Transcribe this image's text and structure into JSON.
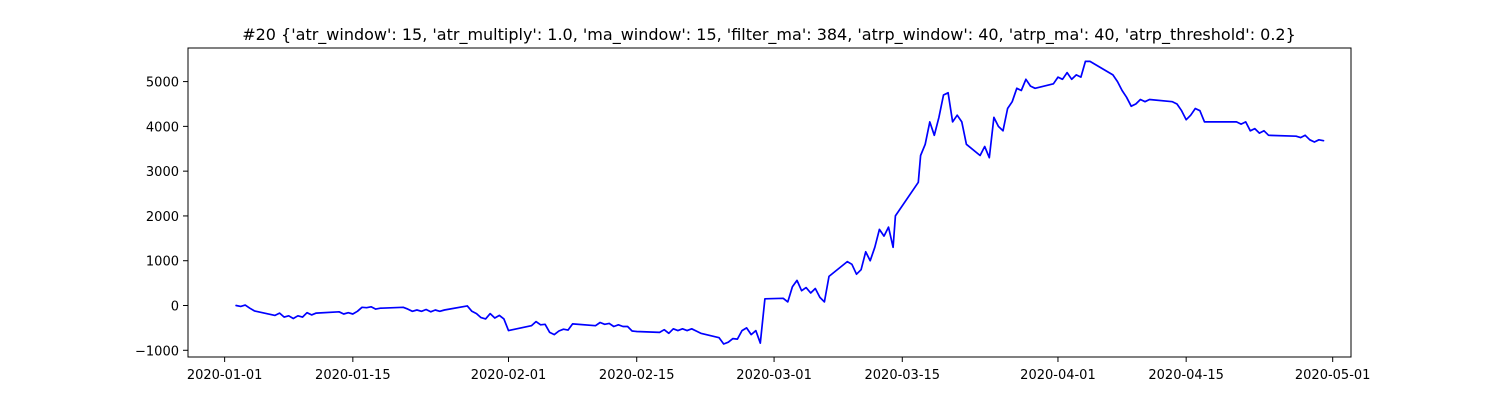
{
  "chart_data": {
    "type": "line",
    "title": "#20 {'atr_window': 15, 'atr_multiply': 1.0, 'ma_window': 15, 'filter_ma': 384, 'atrp_window': 40, 'atrp_ma': 40, 'atrp_threshold': 0.2}",
    "xlabel": "",
    "ylabel": "",
    "xlim": [
      "2019-12-28",
      "2020-05-03"
    ],
    "ylim": [
      -1150,
      5750
    ],
    "grid": false,
    "x_ticks": [
      {
        "date": "2020-01-01",
        "label": "2020-01-01"
      },
      {
        "date": "2020-01-15",
        "label": "2020-01-15"
      },
      {
        "date": "2020-02-01",
        "label": "2020-02-01"
      },
      {
        "date": "2020-02-15",
        "label": "2020-02-15"
      },
      {
        "date": "2020-03-01",
        "label": "2020-03-01"
      },
      {
        "date": "2020-03-15",
        "label": "2020-03-15"
      },
      {
        "date": "2020-04-01",
        "label": "2020-04-01"
      },
      {
        "date": "2020-04-15",
        "label": "2020-04-15"
      },
      {
        "date": "2020-05-01",
        "label": "2020-05-01"
      }
    ],
    "y_ticks": [
      {
        "value": -1000,
        "label": "−1000"
      },
      {
        "value": 0,
        "label": "0"
      },
      {
        "value": 1000,
        "label": "1000"
      },
      {
        "value": 2000,
        "label": "2000"
      },
      {
        "value": 3000,
        "label": "3000"
      },
      {
        "value": 4000,
        "label": "4000"
      },
      {
        "value": 5000,
        "label": "5000"
      }
    ],
    "series": [
      {
        "color": "#0000ff",
        "points": [
          [
            "2020-01-02 06:00",
            0
          ],
          [
            "2020-01-02 18:00",
            -20
          ],
          [
            "2020-01-03 06:00",
            10
          ],
          [
            "2020-01-03 18:00",
            -60
          ],
          [
            "2020-01-04 06:00",
            -120
          ],
          [
            "2020-01-06 12:00",
            -220
          ],
          [
            "2020-01-07 00:00",
            -170
          ],
          [
            "2020-01-07 12:00",
            -260
          ],
          [
            "2020-01-08 00:00",
            -230
          ],
          [
            "2020-01-08 12:00",
            -290
          ],
          [
            "2020-01-09 00:00",
            -230
          ],
          [
            "2020-01-09 12:00",
            -260
          ],
          [
            "2020-01-10 00:00",
            -160
          ],
          [
            "2020-01-10 12:00",
            -210
          ],
          [
            "2020-01-11 00:00",
            -170
          ],
          [
            "2020-01-13 12:00",
            -140
          ],
          [
            "2020-01-14 00:00",
            -190
          ],
          [
            "2020-01-14 12:00",
            -160
          ],
          [
            "2020-01-15 00:00",
            -190
          ],
          [
            "2020-01-15 12:00",
            -130
          ],
          [
            "2020-01-16 00:00",
            -40
          ],
          [
            "2020-01-16 12:00",
            -50
          ],
          [
            "2020-01-17 00:00",
            -30
          ],
          [
            "2020-01-17 12:00",
            -80
          ],
          [
            "2020-01-18 00:00",
            -60
          ],
          [
            "2020-01-20 12:00",
            -40
          ],
          [
            "2020-01-21 00:00",
            -80
          ],
          [
            "2020-01-21 12:00",
            -130
          ],
          [
            "2020-01-22 00:00",
            -100
          ],
          [
            "2020-01-22 12:00",
            -130
          ],
          [
            "2020-01-23 00:00",
            -90
          ],
          [
            "2020-01-23 12:00",
            -140
          ],
          [
            "2020-01-24 00:00",
            -100
          ],
          [
            "2020-01-24 12:00",
            -130
          ],
          [
            "2020-01-25 00:00",
            -100
          ],
          [
            "2020-01-27 12:00",
            -10
          ],
          [
            "2020-01-28 00:00",
            -130
          ],
          [
            "2020-01-28 12:00",
            -180
          ],
          [
            "2020-01-29 00:00",
            -270
          ],
          [
            "2020-01-29 12:00",
            -300
          ],
          [
            "2020-01-30 00:00",
            -180
          ],
          [
            "2020-01-30 12:00",
            -280
          ],
          [
            "2020-01-31 00:00",
            -220
          ],
          [
            "2020-01-31 12:00",
            -300
          ],
          [
            "2020-02-01 00:00",
            -560
          ],
          [
            "2020-02-03 12:00",
            -450
          ],
          [
            "2020-02-04 00:00",
            -360
          ],
          [
            "2020-02-04 12:00",
            -430
          ],
          [
            "2020-02-05 00:00",
            -420
          ],
          [
            "2020-02-05 12:00",
            -600
          ],
          [
            "2020-02-06 00:00",
            -650
          ],
          [
            "2020-02-06 12:00",
            -570
          ],
          [
            "2020-02-07 00:00",
            -530
          ],
          [
            "2020-02-07 12:00",
            -550
          ],
          [
            "2020-02-08 00:00",
            -410
          ],
          [
            "2020-02-10 12:00",
            -450
          ],
          [
            "2020-02-11 00:00",
            -380
          ],
          [
            "2020-02-11 12:00",
            -420
          ],
          [
            "2020-02-12 00:00",
            -400
          ],
          [
            "2020-02-12 12:00",
            -470
          ],
          [
            "2020-02-13 00:00",
            -430
          ],
          [
            "2020-02-13 12:00",
            -470
          ],
          [
            "2020-02-14 00:00",
            -470
          ],
          [
            "2020-02-14 12:00",
            -570
          ],
          [
            "2020-02-15 00:00",
            -580
          ],
          [
            "2020-02-17 12:00",
            -600
          ],
          [
            "2020-02-18 00:00",
            -540
          ],
          [
            "2020-02-18 12:00",
            -620
          ],
          [
            "2020-02-19 00:00",
            -520
          ],
          [
            "2020-02-19 12:00",
            -560
          ],
          [
            "2020-02-20 00:00",
            -520
          ],
          [
            "2020-02-20 12:00",
            -560
          ],
          [
            "2020-02-21 00:00",
            -520
          ],
          [
            "2020-02-21 12:00",
            -570
          ],
          [
            "2020-02-22 00:00",
            -620
          ],
          [
            "2020-02-24 00:00",
            -720
          ],
          [
            "2020-02-24 12:00",
            -860
          ],
          [
            "2020-02-25 00:00",
            -820
          ],
          [
            "2020-02-25 12:00",
            -740
          ],
          [
            "2020-02-26 00:00",
            -750
          ],
          [
            "2020-02-26 12:00",
            -560
          ],
          [
            "2020-02-27 00:00",
            -500
          ],
          [
            "2020-02-27 12:00",
            -650
          ],
          [
            "2020-02-28 00:00",
            -560
          ],
          [
            "2020-02-28 12:00",
            -840
          ],
          [
            "2020-02-29 00:00",
            150
          ],
          [
            "2020-03-02 00:00",
            160
          ],
          [
            "2020-03-02 12:00",
            80
          ],
          [
            "2020-03-03 00:00",
            420
          ],
          [
            "2020-03-03 12:00",
            560
          ],
          [
            "2020-03-04 00:00",
            330
          ],
          [
            "2020-03-04 12:00",
            400
          ],
          [
            "2020-03-05 00:00",
            280
          ],
          [
            "2020-03-05 12:00",
            380
          ],
          [
            "2020-03-06 00:00",
            180
          ],
          [
            "2020-03-06 12:00",
            80
          ],
          [
            "2020-03-07 00:00",
            650
          ],
          [
            "2020-03-09 00:00",
            980
          ],
          [
            "2020-03-09 12:00",
            920
          ],
          [
            "2020-03-10 00:00",
            700
          ],
          [
            "2020-03-10 12:00",
            800
          ],
          [
            "2020-03-11 00:00",
            1200
          ],
          [
            "2020-03-11 12:00",
            1000
          ],
          [
            "2020-03-12 00:00",
            1300
          ],
          [
            "2020-03-12 12:00",
            1700
          ],
          [
            "2020-03-13 00:00",
            1550
          ],
          [
            "2020-03-13 12:00",
            1750
          ],
          [
            "2020-03-14 00:00",
            1300
          ],
          [
            "2020-03-14 06:00",
            2000
          ],
          [
            "2020-03-16 18:00",
            2750
          ],
          [
            "2020-03-17 00:00",
            3350
          ],
          [
            "2020-03-17 12:00",
            3600
          ],
          [
            "2020-03-18 00:00",
            4100
          ],
          [
            "2020-03-18 12:00",
            3800
          ],
          [
            "2020-03-19 00:00",
            4200
          ],
          [
            "2020-03-19 12:00",
            4700
          ],
          [
            "2020-03-20 00:00",
            4750
          ],
          [
            "2020-03-20 12:00",
            4100
          ],
          [
            "2020-03-21 00:00",
            4250
          ],
          [
            "2020-03-21 12:00",
            4100
          ],
          [
            "2020-03-22 00:00",
            3600
          ],
          [
            "2020-03-23 12:00",
            3350
          ],
          [
            "2020-03-24 00:00",
            3550
          ],
          [
            "2020-03-24 12:00",
            3300
          ],
          [
            "2020-03-25 00:00",
            4200
          ],
          [
            "2020-03-25 12:00",
            4000
          ],
          [
            "2020-03-26 00:00",
            3900
          ],
          [
            "2020-03-26 12:00",
            4400
          ],
          [
            "2020-03-27 00:00",
            4550
          ],
          [
            "2020-03-27 12:00",
            4850
          ],
          [
            "2020-03-28 00:00",
            4800
          ],
          [
            "2020-03-28 12:00",
            5050
          ],
          [
            "2020-03-29 00:00",
            4900
          ],
          [
            "2020-03-29 12:00",
            4850
          ],
          [
            "2020-03-31 12:00",
            4950
          ],
          [
            "2020-04-01 00:00",
            5100
          ],
          [
            "2020-04-01 12:00",
            5050
          ],
          [
            "2020-04-02 00:00",
            5200
          ],
          [
            "2020-04-02 12:00",
            5050
          ],
          [
            "2020-04-03 00:00",
            5150
          ],
          [
            "2020-04-03 12:00",
            5100
          ],
          [
            "2020-04-04 00:00",
            5450
          ],
          [
            "2020-04-04 12:00",
            5450
          ],
          [
            "2020-04-07 00:00",
            5150
          ],
          [
            "2020-04-07 12:00",
            5000
          ],
          [
            "2020-04-08 00:00",
            4800
          ],
          [
            "2020-04-08 12:00",
            4650
          ],
          [
            "2020-04-09 00:00",
            4450
          ],
          [
            "2020-04-09 12:00",
            4500
          ],
          [
            "2020-04-10 00:00",
            4600
          ],
          [
            "2020-04-10 12:00",
            4550
          ],
          [
            "2020-04-11 00:00",
            4600
          ],
          [
            "2020-04-13 12:00",
            4550
          ],
          [
            "2020-04-14 00:00",
            4500
          ],
          [
            "2020-04-14 12:00",
            4350
          ],
          [
            "2020-04-15 00:00",
            4150
          ],
          [
            "2020-04-15 12:00",
            4250
          ],
          [
            "2020-04-16 00:00",
            4400
          ],
          [
            "2020-04-16 12:00",
            4350
          ],
          [
            "2020-04-17 00:00",
            4100
          ],
          [
            "2020-04-20 12:00",
            4100
          ],
          [
            "2020-04-21 00:00",
            4050
          ],
          [
            "2020-04-21 12:00",
            4100
          ],
          [
            "2020-04-22 00:00",
            3900
          ],
          [
            "2020-04-22 12:00",
            3950
          ],
          [
            "2020-04-23 00:00",
            3850
          ],
          [
            "2020-04-23 12:00",
            3900
          ],
          [
            "2020-04-24 00:00",
            3800
          ],
          [
            "2020-04-27 00:00",
            3780
          ],
          [
            "2020-04-27 12:00",
            3750
          ],
          [
            "2020-04-28 00:00",
            3800
          ],
          [
            "2020-04-28 12:00",
            3700
          ],
          [
            "2020-04-29 00:00",
            3650
          ],
          [
            "2020-04-29 12:00",
            3700
          ],
          [
            "2020-04-30 00:00",
            3680
          ]
        ]
      }
    ]
  }
}
